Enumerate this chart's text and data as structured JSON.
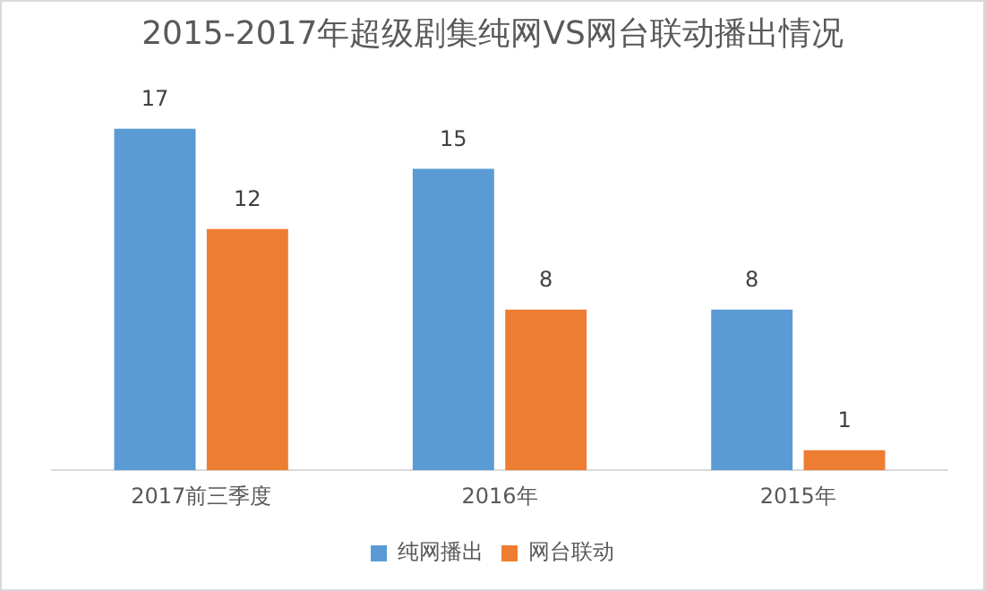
{
  "chart_data": {
    "type": "bar",
    "title": "2015-2017年超级剧集纯网VS网台联动播出情况",
    "categories": [
      "2017前三季度",
      "2016年",
      "2015年"
    ],
    "series": [
      {
        "name": "纯网播出",
        "color": "#5b9bd5",
        "values": [
          17,
          15,
          8
        ]
      },
      {
        "name": "网台联动",
        "color": "#ed7d31",
        "values": [
          12,
          8,
          1
        ]
      }
    ],
    "data_labels": true,
    "legend": "bottom",
    "grid": false,
    "tick_labels": "x"
  }
}
